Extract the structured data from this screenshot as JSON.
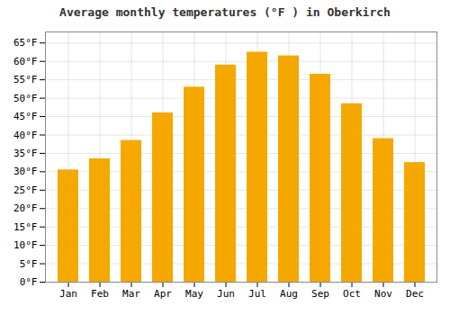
{
  "chart_data": {
    "type": "bar",
    "title": "Average monthly temperatures (°F ) in Oberkirch",
    "categories": [
      "Jan",
      "Feb",
      "Mar",
      "Apr",
      "May",
      "Jun",
      "Jul",
      "Aug",
      "Sep",
      "Oct",
      "Nov",
      "Dec"
    ],
    "values": [
      30.5,
      33.5,
      38.5,
      46,
      53,
      59,
      62.5,
      61.5,
      56.5,
      48.5,
      39,
      32.5
    ],
    "color": "#F5A800",
    "ylim": [
      0,
      68
    ],
    "yticks": [
      {
        "value": 0,
        "label": "0°F"
      },
      {
        "value": 5,
        "label": "5°F"
      },
      {
        "value": 10,
        "label": "10°F"
      },
      {
        "value": 15,
        "label": "15°F"
      },
      {
        "value": 20,
        "label": "20°F"
      },
      {
        "value": 25,
        "label": "25°F"
      },
      {
        "value": 30,
        "label": "30°F"
      },
      {
        "value": 35,
        "label": "35°F"
      },
      {
        "value": 40,
        "label": "40°F"
      },
      {
        "value": 45,
        "label": "45°F"
      },
      {
        "value": 50,
        "label": "50°F"
      },
      {
        "value": 55,
        "label": "55°F"
      },
      {
        "value": 60,
        "label": "60°F"
      },
      {
        "value": 65,
        "label": "65°F"
      }
    ],
    "grid": true
  }
}
